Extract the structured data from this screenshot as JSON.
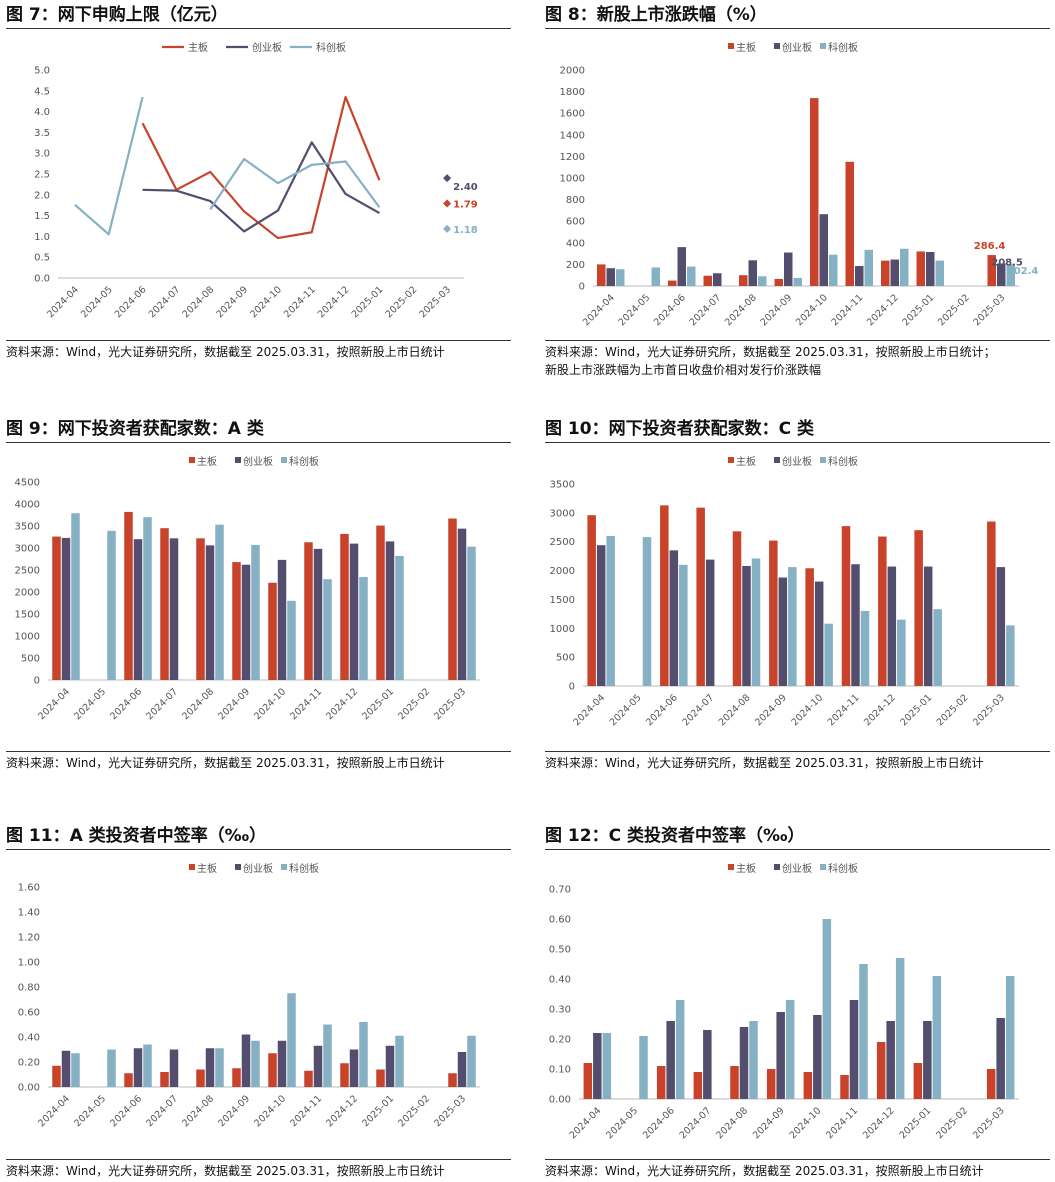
{
  "colors": {
    "main": "#C8432A",
    "chinext": "#544E6E",
    "star": "#86B0C4"
  },
  "figures": [
    {
      "id": "fig7",
      "title": "图 7：网下申购上限（亿元）",
      "source": [
        "资料来源：Wind，光大证券研究所，数据截至 2025.03.31，按照新股上市日统计"
      ],
      "chart_data": {
        "type": "line",
        "categories": [
          "2024-04",
          "2024-05",
          "2024-06",
          "2024-07",
          "2024-08",
          "2024-09",
          "2024-10",
          "2024-11",
          "2024-12",
          "2025-01",
          "2025-02",
          "2025-03"
        ],
        "ylim": [
          0,
          5
        ],
        "yticks": [
          "0.0",
          "0.5",
          "1.0",
          "1.5",
          "2.0",
          "2.5",
          "3.0",
          "3.5",
          "4.0",
          "4.5",
          "5.0"
        ],
        "series": [
          {
            "name": "主板",
            "color_key": "main",
            "values": [
              null,
              null,
              3.72,
              2.12,
              2.55,
              1.6,
              0.96,
              1.1,
              4.35,
              2.35,
              null,
              1.79
            ]
          },
          {
            "name": "创业板",
            "color_key": "chinext",
            "values": [
              null,
              null,
              2.12,
              2.1,
              1.85,
              1.12,
              1.62,
              3.26,
              2.02,
              1.56,
              null,
              2.4
            ]
          },
          {
            "name": "科创板",
            "color_key": "star",
            "values": [
              1.76,
              1.05,
              4.35,
              null,
              1.65,
              2.86,
              2.28,
              2.72,
              2.8,
              1.7,
              null,
              1.18
            ]
          }
        ],
        "annotations": [
          {
            "series": 1,
            "text": "2.40"
          },
          {
            "series": 0,
            "text": "1.79"
          },
          {
            "series": 2,
            "text": "1.18"
          }
        ]
      }
    },
    {
      "id": "fig8",
      "title": "图 8：新股上市涨跌幅（%）",
      "source": [
        "资料来源：Wind，光大证券研究所，数据截至 2025.03.31，按照新股上市日统计；",
        "新股上市涨跌幅为上市首日收盘价相对发行价涨跌幅"
      ],
      "chart_data": {
        "type": "bar",
        "categories": [
          "2024-04",
          "2024-05",
          "2024-06",
          "2024-07",
          "2024-08",
          "2024-09",
          "2024-10",
          "2024-11",
          "2024-12",
          "2025-01",
          "2025-02",
          "2025-03"
        ],
        "ylim": [
          0,
          2000
        ],
        "yticks": [
          "0",
          "200",
          "400",
          "600",
          "800",
          "1000",
          "1200",
          "1400",
          "1600",
          "1800",
          "2000"
        ],
        "series": [
          {
            "name": "主板",
            "color_key": "main",
            "values": [
              200,
              0,
              50,
              95,
              100,
              65,
              1740,
              1150,
              235,
              320,
              0,
              286.4
            ]
          },
          {
            "name": "创业板",
            "color_key": "chinext",
            "values": [
              165,
              0,
              360,
              118,
              238,
              310,
              665,
              185,
              245,
              315,
              0,
              208.5
            ]
          },
          {
            "name": "科创板",
            "color_key": "star",
            "values": [
              155,
              172,
              180,
              0,
              90,
              75,
              290,
              335,
              345,
              235,
              0,
              202.4
            ]
          }
        ],
        "annotations": [
          {
            "series": 0,
            "text": "286.4"
          },
          {
            "series": 1,
            "text": "208.5"
          },
          {
            "series": 2,
            "text": "202.4"
          }
        ]
      }
    },
    {
      "id": "fig9",
      "title": "图 9：网下投资者获配家数：A 类",
      "source": [
        "资料来源：Wind，光大证券研究所，数据截至 2025.03.31，按照新股上市日统计"
      ],
      "chart_data": {
        "type": "bar",
        "categories": [
          "2024-04",
          "2024-05",
          "2024-06",
          "2024-07",
          "2024-08",
          "2024-09",
          "2024-10",
          "2024-11",
          "2024-12",
          "2025-01",
          "2025-02",
          "2025-03"
        ],
        "ylim": [
          0,
          4500
        ],
        "yticks": [
          "0",
          "500",
          "1000",
          "1500",
          "2000",
          "2500",
          "3000",
          "3500",
          "4000",
          "4500"
        ],
        "series": [
          {
            "name": "主板",
            "color_key": "main",
            "values": [
              3260,
              0,
              3820,
              3450,
              3220,
              2680,
              2210,
              3130,
              3320,
              3510,
              0,
              3670
            ]
          },
          {
            "name": "创业板",
            "color_key": "chinext",
            "values": [
              3230,
              0,
              3200,
              3220,
              3060,
              2620,
              2730,
              2980,
              3100,
              3150,
              0,
              3440
            ]
          },
          {
            "name": "科创板",
            "color_key": "star",
            "values": [
              3790,
              3390,
              3700,
              0,
              3530,
              3070,
              1800,
              2290,
              2340,
              2820,
              0,
              3030
            ]
          }
        ]
      }
    },
    {
      "id": "fig10",
      "title": "图 10：网下投资者获配家数：C 类",
      "source": [
        "资料来源：Wind，光大证券研究所，数据截至 2025.03.31，按照新股上市日统计"
      ],
      "chart_data": {
        "type": "bar",
        "categories": [
          "2024-04",
          "2024-05",
          "2024-06",
          "2024-07",
          "2024-08",
          "2024-09",
          "2024-10",
          "2024-11",
          "2024-12",
          "2025-01",
          "2025-02",
          "2025-03"
        ],
        "ylim": [
          0,
          3500
        ],
        "yticks": [
          "0",
          "500",
          "1000",
          "1500",
          "2000",
          "2500",
          "3000",
          "3500"
        ],
        "series": [
          {
            "name": "主板",
            "color_key": "main",
            "values": [
              2960,
              0,
              3130,
              3090,
              2680,
              2520,
              2040,
              2770,
              2590,
              2700,
              0,
              2850
            ]
          },
          {
            "name": "创业板",
            "color_key": "chinext",
            "values": [
              2440,
              0,
              2350,
              2190,
              2080,
              1880,
              1810,
              2110,
              2070,
              2070,
              0,
              2060
            ]
          },
          {
            "name": "科创板",
            "color_key": "star",
            "values": [
              2600,
              2580,
              2100,
              0,
              2210,
              2060,
              1080,
              1300,
              1150,
              1330,
              0,
              1050
            ]
          }
        ]
      }
    },
    {
      "id": "fig11",
      "title": "图 11：A 类投资者中签率（‰）",
      "source": [
        "资料来源：Wind，光大证券研究所，数据截至 2025.03.31，按照新股上市日统计"
      ],
      "chart_data": {
        "type": "bar",
        "categories": [
          "2024-04",
          "2024-05",
          "2024-06",
          "2024-07",
          "2024-08",
          "2024-09",
          "2024-10",
          "2024-11",
          "2024-12",
          "2025-01",
          "2025-02",
          "2025-03"
        ],
        "ylim": [
          0,
          1.6
        ],
        "yticks": [
          "0.00",
          "0.20",
          "0.40",
          "0.60",
          "0.80",
          "1.00",
          "1.20",
          "1.40",
          "1.60"
        ],
        "series": [
          {
            "name": "主板",
            "color_key": "main",
            "values": [
              0.17,
              0,
              0.11,
              0.12,
              0.14,
              0.15,
              0.27,
              0.13,
              0.19,
              0.14,
              0,
              0.11
            ]
          },
          {
            "name": "创业板",
            "color_key": "chinext",
            "values": [
              0.29,
              0,
              0.31,
              0.3,
              0.31,
              0.42,
              0.37,
              0.33,
              0.3,
              0.33,
              0,
              0.28
            ]
          },
          {
            "name": "科创板",
            "color_key": "star",
            "values": [
              0.27,
              0.3,
              0.34,
              0,
              0.31,
              0.37,
              0.75,
              0.5,
              0.52,
              0.41,
              0,
              0.41
            ]
          }
        ]
      }
    },
    {
      "id": "fig12",
      "title": "图 12：C 类投资者中签率（‰）",
      "source": [
        "资料来源：Wind，光大证券研究所，数据截至 2025.03.31，按照新股上市日统计"
      ],
      "chart_data": {
        "type": "bar",
        "categories": [
          "2024-04",
          "2024-05",
          "2024-06",
          "2024-07",
          "2024-08",
          "2024-09",
          "2024-10",
          "2024-11",
          "2024-12",
          "2025-01",
          "2025-02",
          "2025-03"
        ],
        "ylim": [
          0,
          0.7
        ],
        "yticks": [
          "0.00",
          "0.10",
          "0.20",
          "0.30",
          "0.40",
          "0.50",
          "0.60",
          "0.70"
        ],
        "series": [
          {
            "name": "主板",
            "color_key": "main",
            "values": [
              0.12,
              0,
              0.11,
              0.09,
              0.11,
              0.1,
              0.09,
              0.08,
              0.19,
              0.12,
              0,
              0.1
            ]
          },
          {
            "name": "创业板",
            "color_key": "chinext",
            "values": [
              0.22,
              0,
              0.26,
              0.23,
              0.24,
              0.29,
              0.28,
              0.33,
              0.26,
              0.26,
              0,
              0.27
            ]
          },
          {
            "name": "科创板",
            "color_key": "star",
            "values": [
              0.22,
              0.21,
              0.33,
              0,
              0.26,
              0.33,
              0.6,
              0.45,
              0.47,
              0.41,
              0,
              0.41
            ]
          }
        ]
      }
    }
  ]
}
